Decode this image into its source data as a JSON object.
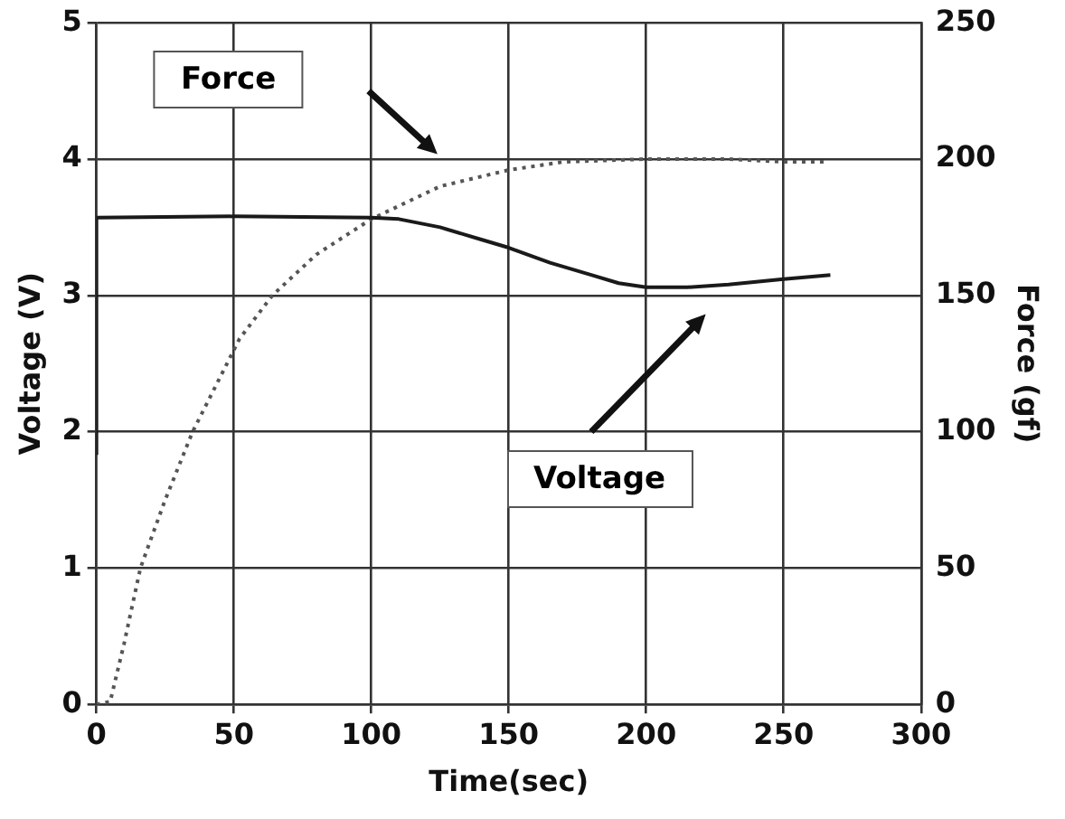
{
  "chart_data": {
    "type": "line",
    "xlabel": "Time(sec)",
    "ylabel": "Voltage (V)",
    "y2label": "Force (gf)",
    "xlim": [
      0,
      300
    ],
    "xticks": [
      0,
      50,
      100,
      150,
      200,
      250,
      300
    ],
    "ylim": [
      0,
      5
    ],
    "yticks": [
      0,
      1,
      2,
      3,
      4,
      5
    ],
    "y2lim": [
      0,
      250
    ],
    "y2ticks": [
      0,
      50,
      100,
      150,
      200,
      250
    ],
    "grid": true,
    "legend": false,
    "marker": "none",
    "series": [
      {
        "color": "#1a1a1a",
        "line_style": "solid",
        "x": [
          0,
          0,
          50,
          100,
          110,
          125,
          140,
          150,
          165,
          180,
          190,
          200,
          215,
          230,
          250,
          267
        ],
        "values": [
          1.83,
          3.57,
          3.58,
          3.57,
          3.56,
          3.5,
          3.41,
          3.35,
          3.24,
          3.15,
          3.09,
          3.06,
          3.06,
          3.08,
          3.12,
          3.15
        ]
      },
      {
        "color": "#555555",
        "line_style": "dotted",
        "axis": "y2",
        "x": [
          0,
          5,
          10,
          16,
          25,
          35,
          45,
          52,
          64,
          80,
          100,
          125,
          150,
          170,
          200,
          230,
          250,
          265
        ],
        "values": [
          0,
          1,
          22,
          50,
          75,
          100,
          120,
          134,
          150,
          165,
          178,
          190,
          196,
          199,
          200,
          200,
          199,
          199
        ]
      }
    ],
    "annotations": [
      "Force",
      "Voltage"
    ]
  }
}
